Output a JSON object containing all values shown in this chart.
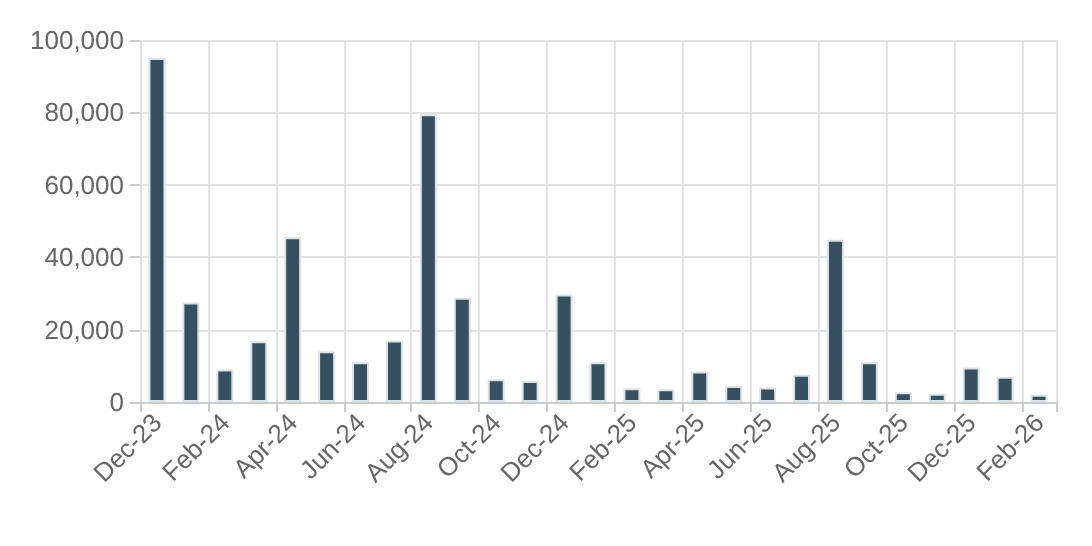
{
  "chart_data": {
    "type": "bar",
    "categories": [
      "Dec-23",
      null,
      "Feb-24",
      null,
      "Apr-24",
      null,
      "Jun-24",
      null,
      "Aug-24",
      null,
      "Oct-24",
      null,
      "Dec-24",
      null,
      "Feb-25",
      null,
      "Apr-25",
      null,
      "Jun-25",
      null,
      "Aug-25",
      null,
      "Oct-25",
      null,
      "Dec-25",
      null,
      "Feb-26"
    ],
    "values": [
      95000,
      27500,
      9000,
      16800,
      45500,
      14000,
      11000,
      17000,
      79500,
      28800,
      6300,
      5800,
      29700,
      11000,
      3800,
      3500,
      8400,
      4400,
      4000,
      7500,
      44800,
      11000,
      2700,
      2300,
      9500,
      7000,
      2000
    ],
    "color": "#36505f",
    "ylim": [
      0,
      100000
    ],
    "yticks": [
      0,
      {
        "value": 20000,
        "label": "20,000"
      },
      {
        "value": 40000,
        "label": "40,000"
      },
      {
        "value": 60000,
        "label": "60,000"
      },
      {
        "value": 80000,
        "label": "80,000"
      },
      {
        "value": 100000,
        "label": "100,000"
      }
    ],
    "grid": true
  }
}
